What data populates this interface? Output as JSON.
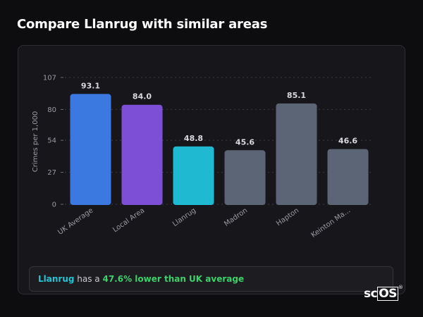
{
  "page": {
    "title": "Compare Llanrug with similar areas"
  },
  "summary": {
    "place": "Llanrug",
    "middle": " has a ",
    "diff": "47.6% lower than UK average"
  },
  "logo": {
    "text_a": "sc",
    "text_b": "OS",
    "mark": "®"
  },
  "chart_data": {
    "type": "bar",
    "title": "",
    "xlabel": "",
    "ylabel": "Crimes per 1,000",
    "ylim": [
      0,
      107
    ],
    "yticks": [
      0,
      27,
      54,
      80,
      107
    ],
    "grid": true,
    "categories": [
      "UK Average",
      "Local Area",
      "Llanrug",
      "Madron",
      "Hapton",
      "Keinton Ma..."
    ],
    "values": [
      93.1,
      84.0,
      48.8,
      45.6,
      85.1,
      46.6
    ],
    "value_labels": [
      "93.1",
      "84.0",
      "48.8",
      "45.6",
      "85.1",
      "46.6"
    ],
    "colors": [
      "#3b78e0",
      "#7c4fd6",
      "#1fbad2",
      "#5c6576",
      "#5c6576",
      "#5c6576"
    ]
  }
}
